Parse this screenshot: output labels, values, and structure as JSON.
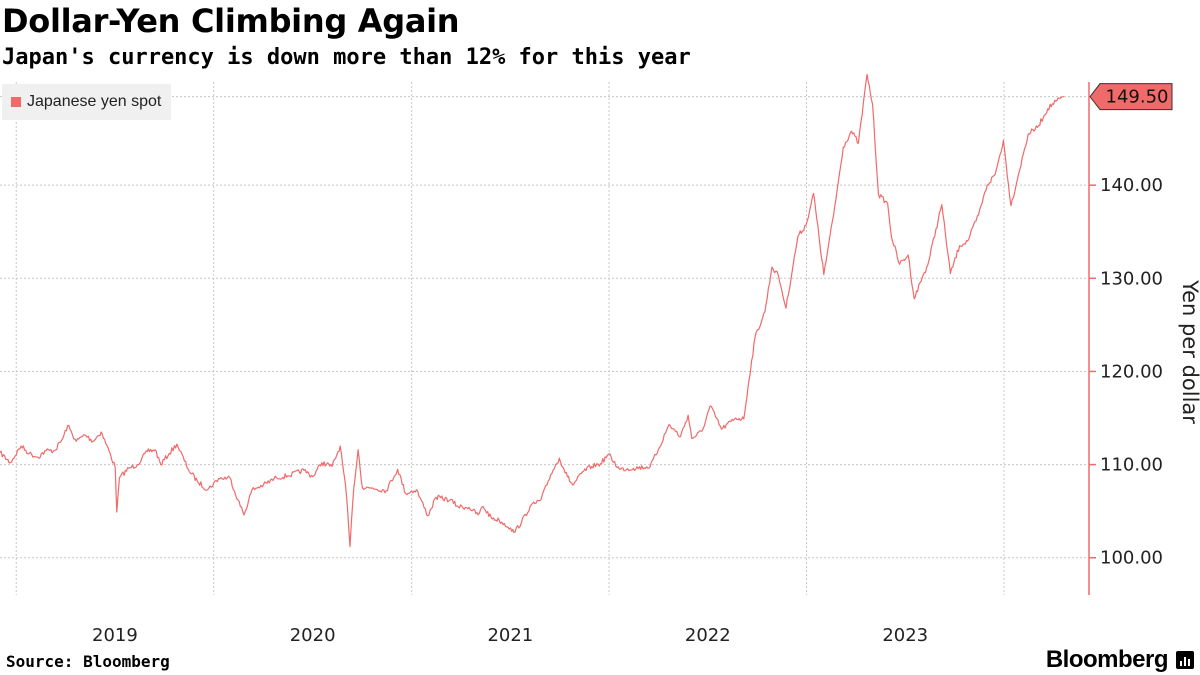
{
  "title": "Dollar-Yen Climbing Again",
  "subtitle": "Japan's currency is down more than 12% for this year",
  "source": "Source: Bloomberg",
  "brand": "Bloomberg",
  "colors": {
    "series": "#f06a6a",
    "axis": "#f06a6a",
    "grid": "#c8c8c8"
  },
  "chart_data": {
    "type": "line",
    "xlabel": "",
    "ylabel": "Yen per dollar",
    "ylim": [
      96,
      150
    ],
    "xlim": [
      "2018-06-01",
      "2023-10-20"
    ],
    "y_ticks": [
      100,
      110,
      120,
      130,
      140
    ],
    "y_tick_labels": [
      "100.00",
      "110.00",
      "120.00",
      "130.00",
      "140.00"
    ],
    "x_tick_labels": [
      "2019",
      "2020",
      "2021",
      "2022",
      "2023"
    ],
    "x_tick_positions": [
      "2019-01-01",
      "2020-01-01",
      "2021-01-01",
      "2022-01-01",
      "2023-01-01"
    ],
    "x_gridlines": [
      "2018-07-01",
      "2019-07-01",
      "2020-07-01",
      "2021-07-01",
      "2022-07-01",
      "2023-07-01"
    ],
    "grid": true,
    "legend": "top-left",
    "last_value_label": "149.50",
    "series": [
      {
        "name": "Japanese yen spot",
        "points": [
          [
            "2018-06-01",
            111.3
          ],
          [
            "2018-06-20",
            110.2
          ],
          [
            "2018-07-10",
            112.0
          ],
          [
            "2018-07-25",
            111.2
          ],
          [
            "2018-08-10",
            110.8
          ],
          [
            "2018-08-25",
            111.5
          ],
          [
            "2018-09-10",
            111.5
          ],
          [
            "2018-09-25",
            112.8
          ],
          [
            "2018-10-04",
            114.2
          ],
          [
            "2018-10-20",
            112.5
          ],
          [
            "2018-11-05",
            113.2
          ],
          [
            "2018-11-20",
            112.5
          ],
          [
            "2018-12-05",
            113.5
          ],
          [
            "2018-12-20",
            111.4
          ],
          [
            "2018-12-31",
            109.7
          ],
          [
            "2019-01-03",
            104.9
          ],
          [
            "2019-01-08",
            108.6
          ],
          [
            "2019-01-25",
            109.6
          ],
          [
            "2019-02-10",
            110.0
          ],
          [
            "2019-02-28",
            111.4
          ],
          [
            "2019-03-15",
            111.6
          ],
          [
            "2019-03-25",
            110.0
          ],
          [
            "2019-04-10",
            111.2
          ],
          [
            "2019-04-24",
            112.2
          ],
          [
            "2019-05-15",
            109.5
          ],
          [
            "2019-06-01",
            108.2
          ],
          [
            "2019-06-20",
            107.3
          ],
          [
            "2019-07-10",
            108.5
          ],
          [
            "2019-07-31",
            108.6
          ],
          [
            "2019-08-15",
            106.2
          ],
          [
            "2019-08-26",
            104.6
          ],
          [
            "2019-09-10",
            107.3
          ],
          [
            "2019-10-01",
            107.8
          ],
          [
            "2019-10-25",
            108.6
          ],
          [
            "2019-11-15",
            108.8
          ],
          [
            "2019-12-15",
            109.4
          ],
          [
            "2019-12-31",
            108.7
          ],
          [
            "2020-01-17",
            110.2
          ],
          [
            "2020-02-05",
            109.8
          ],
          [
            "2020-02-20",
            112.0
          ],
          [
            "2020-03-02",
            107.0
          ],
          [
            "2020-03-09",
            101.2
          ],
          [
            "2020-03-16",
            107.5
          ],
          [
            "2020-03-24",
            111.6
          ],
          [
            "2020-04-01",
            107.5
          ],
          [
            "2020-04-20",
            107.5
          ],
          [
            "2020-05-15",
            107.2
          ],
          [
            "2020-06-05",
            109.5
          ],
          [
            "2020-06-20",
            106.9
          ],
          [
            "2020-07-10",
            107.3
          ],
          [
            "2020-07-31",
            104.5
          ],
          [
            "2020-08-15",
            106.5
          ],
          [
            "2020-09-10",
            106.2
          ],
          [
            "2020-09-25",
            105.5
          ],
          [
            "2020-10-15",
            105.4
          ],
          [
            "2020-11-01",
            104.6
          ],
          [
            "2020-11-10",
            105.5
          ],
          [
            "2020-11-25",
            104.3
          ],
          [
            "2020-12-10",
            104.0
          ],
          [
            "2020-12-31",
            103.2
          ],
          [
            "2021-01-06",
            102.7
          ],
          [
            "2021-01-20",
            103.8
          ],
          [
            "2021-02-05",
            105.5
          ],
          [
            "2021-02-25",
            106.2
          ],
          [
            "2021-03-15",
            108.9
          ],
          [
            "2021-03-31",
            110.7
          ],
          [
            "2021-04-15",
            108.7
          ],
          [
            "2021-04-25",
            107.8
          ],
          [
            "2021-05-15",
            109.3
          ],
          [
            "2021-05-30",
            109.8
          ],
          [
            "2021-06-15",
            110.1
          ],
          [
            "2021-06-30",
            111.1
          ],
          [
            "2021-07-20",
            109.5
          ],
          [
            "2021-08-15",
            109.6
          ],
          [
            "2021-09-15",
            109.8
          ],
          [
            "2021-09-30",
            111.6
          ],
          [
            "2021-10-20",
            114.3
          ],
          [
            "2021-11-10",
            113.0
          ],
          [
            "2021-11-24",
            115.3
          ],
          [
            "2021-12-01",
            112.8
          ],
          [
            "2021-12-20",
            113.6
          ],
          [
            "2022-01-04",
            116.3
          ],
          [
            "2022-01-25",
            113.8
          ],
          [
            "2022-02-20",
            115.0
          ],
          [
            "2022-03-07",
            114.9
          ],
          [
            "2022-03-15",
            118.4
          ],
          [
            "2022-03-28",
            123.7
          ],
          [
            "2022-04-15",
            126.4
          ],
          [
            "2022-04-28",
            131.2
          ],
          [
            "2022-05-10",
            130.3
          ],
          [
            "2022-05-24",
            126.8
          ],
          [
            "2022-06-15",
            134.5
          ],
          [
            "2022-06-30",
            135.7
          ],
          [
            "2022-07-14",
            139.1
          ],
          [
            "2022-08-02",
            130.4
          ],
          [
            "2022-08-20",
            136.8
          ],
          [
            "2022-09-07",
            144.1
          ],
          [
            "2022-09-22",
            145.8
          ],
          [
            "2022-10-05",
            144.5
          ],
          [
            "2022-10-21",
            151.9
          ],
          [
            "2022-10-31",
            148.7
          ],
          [
            "2022-11-11",
            139.0
          ],
          [
            "2022-11-28",
            138.0
          ],
          [
            "2022-12-05",
            134.5
          ],
          [
            "2022-12-20",
            131.5
          ],
          [
            "2023-01-05",
            132.5
          ],
          [
            "2023-01-16",
            127.8
          ],
          [
            "2023-01-31",
            130.1
          ],
          [
            "2023-02-10",
            131.4
          ],
          [
            "2023-03-08",
            137.9
          ],
          [
            "2023-03-24",
            130.5
          ],
          [
            "2023-04-10",
            133.5
          ],
          [
            "2023-04-25",
            134.0
          ],
          [
            "2023-05-15",
            136.8
          ],
          [
            "2023-05-31",
            140.0
          ],
          [
            "2023-06-15",
            141.2
          ],
          [
            "2023-06-30",
            144.8
          ],
          [
            "2023-07-14",
            137.8
          ],
          [
            "2023-07-28",
            141.2
          ],
          [
            "2023-08-15",
            145.5
          ],
          [
            "2023-09-01",
            146.2
          ],
          [
            "2023-09-20",
            148.2
          ],
          [
            "2023-10-05",
            149.0
          ],
          [
            "2023-10-20",
            149.5
          ]
        ]
      }
    ]
  }
}
